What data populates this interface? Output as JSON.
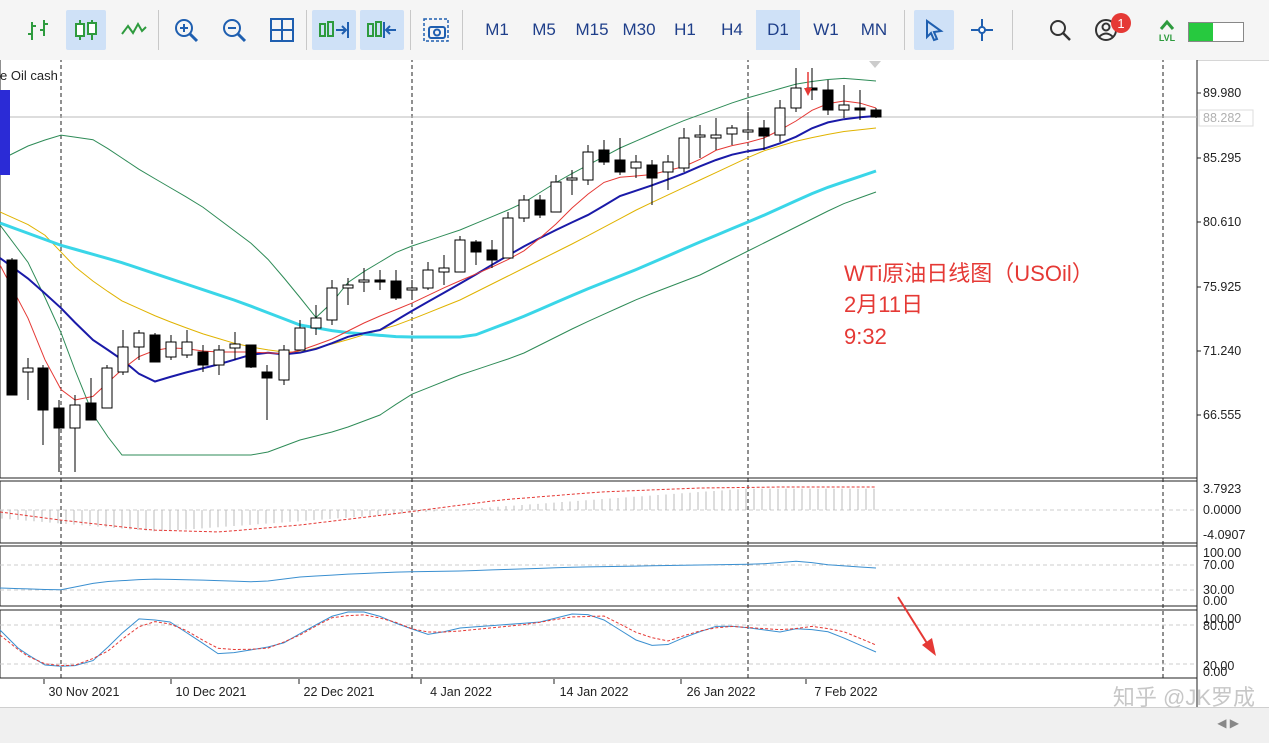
{
  "toolbar": {
    "timeframes": [
      {
        "label": "M1",
        "active": false
      },
      {
        "label": "M5",
        "active": false
      },
      {
        "label": "M15",
        "active": false
      },
      {
        "label": "M30",
        "active": false
      },
      {
        "label": "H1",
        "active": false
      },
      {
        "label": "H4",
        "active": false
      },
      {
        "label": "D1",
        "active": true
      },
      {
        "label": "W1",
        "active": false
      },
      {
        "label": "MN",
        "active": false
      }
    ],
    "notification_count": "1",
    "lvl_label": "LVL",
    "signal_fill_fraction": 0.45
  },
  "chart": {
    "symbol_label": "e Oil cash",
    "price_ticks": [
      "89.980",
      "85.295",
      "80.610",
      "75.925",
      "71.240",
      "66.555"
    ],
    "current_price": "88.282",
    "macd_ticks": [
      "3.7923",
      "0.0000",
      "-4.0907"
    ],
    "rsi_ticks": [
      "100.00",
      "70.00",
      "30.00",
      "0.00"
    ],
    "stoch_ticks": [
      "100.00",
      "80.00",
      "20.00",
      "0.00"
    ],
    "date_labels": [
      "30 Nov 2021",
      "10 Dec 2021",
      "22 Dec 2021",
      "4 Jan 2022",
      "14 Jan 2022",
      "26 Jan 2022",
      "7 Feb 2022"
    ]
  },
  "annotation": {
    "line1": "WTi原油日线图（USOil）",
    "line2": "2月11日",
    "line3": "9:32"
  },
  "watermark": "知乎 @JK罗成",
  "colors": {
    "accent": "#e53935",
    "ma_fast": "#1a1aa8",
    "ma_slow": "#3ad6e8",
    "band": "#2e8b57"
  }
}
